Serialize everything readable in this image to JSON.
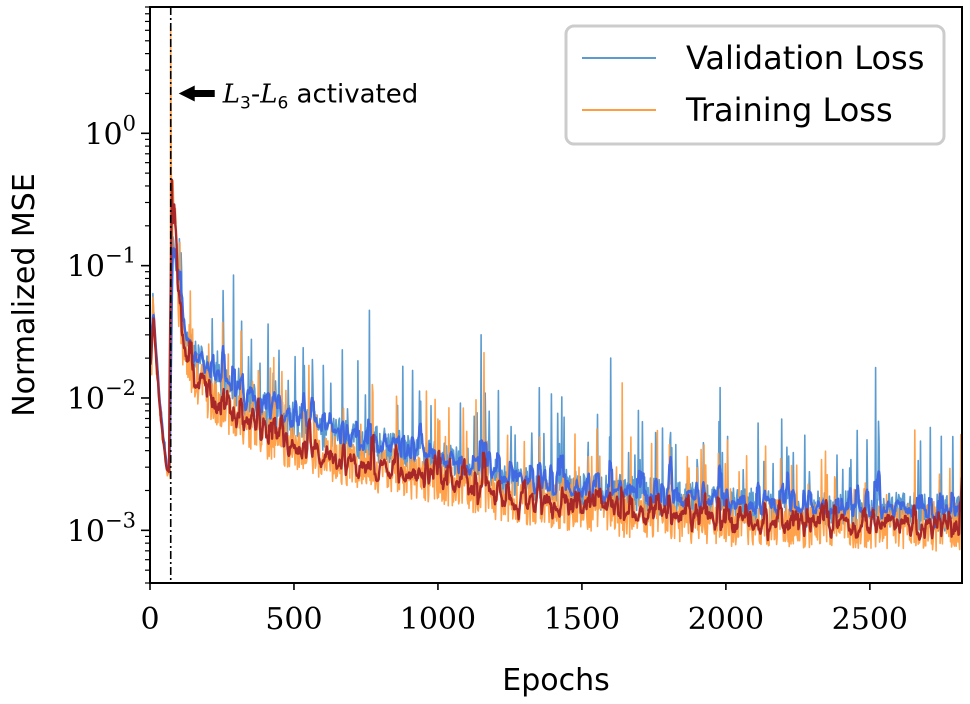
{
  "chart_data": {
    "type": "line",
    "xlabel": "Epochs",
    "ylabel": "Normalized MSE",
    "xlim": [
      0,
      2820
    ],
    "ylim": [
      0.0004,
      9.0
    ],
    "yscale": "log",
    "grid": false,
    "legend_position": "top-right",
    "x_ticks": [
      {
        "value": 0,
        "label": "0"
      },
      {
        "value": 500,
        "label": "500"
      },
      {
        "value": 1000,
        "label": "1000"
      },
      {
        "value": 1500,
        "label": "1500"
      },
      {
        "value": 2000,
        "label": "2000"
      },
      {
        "value": 2500,
        "label": "2500"
      }
    ],
    "y_ticks": [
      {
        "value": 0.001,
        "base": "10",
        "exp": "−3"
      },
      {
        "value": 0.01,
        "base": "10",
        "exp": "−2"
      },
      {
        "value": 0.1,
        "base": "10",
        "exp": "−1"
      },
      {
        "value": 1,
        "base": "10",
        "exp": "0"
      }
    ],
    "series": [
      {
        "name": "Validation Loss",
        "color": "#5b9bd0",
        "kind": "raw"
      },
      {
        "name": "Training Loss",
        "color": "#ff9d42",
        "kind": "raw"
      },
      {
        "color": "#4169e1",
        "kind": "smoothed-validation"
      },
      {
        "color": "#a8282a",
        "kind": "smoothed-training"
      }
    ],
    "curve_points": [
      {
        "epoch": 0,
        "train": 0.03,
        "val": 0.04
      },
      {
        "epoch": 5,
        "train": 0.012,
        "val": 0.018
      },
      {
        "epoch": 10,
        "train": 0.055,
        "val": 0.06
      },
      {
        "epoch": 20,
        "train": 0.02,
        "val": 0.024
      },
      {
        "epoch": 35,
        "train": 0.008,
        "val": 0.009
      },
      {
        "epoch": 50,
        "train": 0.004,
        "val": 0.0045
      },
      {
        "epoch": 60,
        "train": 0.0028,
        "val": 0.003
      },
      {
        "epoch": 70,
        "train": 0.0025,
        "val": 0.0027
      },
      {
        "epoch": 75,
        "train": 0.05,
        "val": 0.09
      },
      {
        "epoch": 80,
        "train": 0.4,
        "val": 0.15
      },
      {
        "epoch": 90,
        "train": 0.2,
        "val": 0.12
      },
      {
        "epoch": 100,
        "train": 0.045,
        "val": 0.06
      },
      {
        "epoch": 120,
        "train": 0.022,
        "val": 0.03
      },
      {
        "epoch": 150,
        "train": 0.016,
        "val": 0.022
      },
      {
        "epoch": 200,
        "train": 0.011,
        "val": 0.016
      },
      {
        "epoch": 250,
        "train": 0.009,
        "val": 0.013
      },
      {
        "epoch": 300,
        "train": 0.0075,
        "val": 0.011
      },
      {
        "epoch": 400,
        "train": 0.0055,
        "val": 0.0085
      },
      {
        "epoch": 500,
        "train": 0.0045,
        "val": 0.007
      },
      {
        "epoch": 600,
        "train": 0.0038,
        "val": 0.0058
      },
      {
        "epoch": 800,
        "train": 0.003,
        "val": 0.0045
      },
      {
        "epoch": 1000,
        "train": 0.0025,
        "val": 0.0037
      },
      {
        "epoch": 1200,
        "train": 0.0019,
        "val": 0.0027
      },
      {
        "epoch": 1500,
        "train": 0.0015,
        "val": 0.0021
      },
      {
        "epoch": 1800,
        "train": 0.0013,
        "val": 0.0018
      },
      {
        "epoch": 2000,
        "train": 0.0012,
        "val": 0.0016
      },
      {
        "epoch": 2300,
        "train": 0.00115,
        "val": 0.0015
      },
      {
        "epoch": 2600,
        "train": 0.0011,
        "val": 0.00145
      },
      {
        "epoch": 2820,
        "train": 0.0011,
        "val": 0.0014
      }
    ],
    "vline": {
      "x": 72
    },
    "annotation": {
      "arrow_target_x": 72,
      "arrow_target_y": 2.0,
      "math_a": "L",
      "sub_a": "3",
      "dash": "-",
      "math_b": "L",
      "sub_b": "6",
      "text": " activated"
    },
    "noise": {
      "seed": 7,
      "step": 2
    }
  }
}
